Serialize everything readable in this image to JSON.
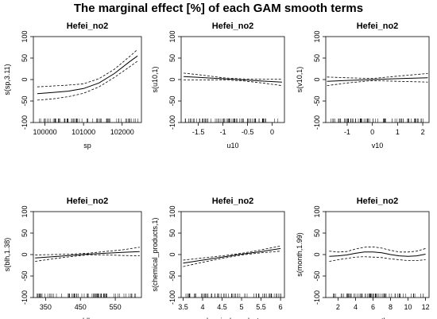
{
  "figure": {
    "title": "The marginal effect [%] of each GAM smooth terms"
  },
  "chart_data": [
    {
      "type": "line",
      "title": "Hefei_no2",
      "xlabel": "sp",
      "ylabel": "s(sp,3.11)",
      "xlim": [
        99700,
        102500
      ],
      "ylim": [
        -100,
        100
      ],
      "xticks": [
        100000,
        101000,
        102000
      ],
      "yticks": [
        -100,
        -50,
        0,
        50,
        100
      ],
      "series": [
        {
          "x": [
            99800,
            100200,
            100600,
            101000,
            101400,
            101800,
            102200,
            102400
          ],
          "values": [
            -33,
            -30,
            -27,
            -21,
            -8,
            14,
            42,
            55
          ]
        },
        {
          "x": [
            99800,
            100200,
            100600,
            101000,
            101400,
            101800,
            102200,
            102400
          ],
          "values": [
            -17,
            -15,
            -13,
            -10,
            2,
            24,
            54,
            70
          ]
        },
        {
          "x": [
            99800,
            100200,
            100600,
            101000,
            101400,
            101800,
            102200,
            102400
          ],
          "values": [
            -48,
            -45,
            -40,
            -32,
            -17,
            5,
            30,
            43
          ]
        }
      ]
    },
    {
      "type": "line",
      "title": "Hefei_no2",
      "xlabel": "u10",
      "ylabel": "s(u10,1)",
      "xlim": [
        -1.85,
        0.25
      ],
      "ylim": [
        -100,
        100
      ],
      "xticks": [
        -1.5,
        -1.0,
        -0.5,
        0.0
      ],
      "yticks": [
        -100,
        -50,
        0,
        50,
        100
      ],
      "series": [
        {
          "x": [
            -1.8,
            -1.4,
            -1.0,
            -0.6,
            -0.2,
            0.2
          ],
          "values": [
            7,
            4.5,
            1.8,
            -0.8,
            -3.5,
            -6
          ]
        },
        {
          "x": [
            -1.8,
            -1.4,
            -1.0,
            -0.6,
            -0.2,
            0.2
          ],
          "values": [
            15,
            10,
            4,
            1.5,
            1,
            1
          ]
        },
        {
          "x": [
            -1.8,
            -1.4,
            -1.0,
            -0.6,
            -0.2,
            0.2
          ],
          "values": [
            -1,
            -1,
            -0.5,
            -3,
            -8,
            -14
          ]
        }
      ]
    },
    {
      "type": "line",
      "title": "Hefei_no2",
      "xlabel": "v10",
      "ylabel": "s(v10,1)",
      "xlim": [
        -1.85,
        2.25
      ],
      "ylim": [
        -100,
        100
      ],
      "xticks": [
        -1,
        0,
        1,
        2
      ],
      "yticks": [
        -100,
        -50,
        0,
        50,
        100
      ],
      "series": [
        {
          "x": [
            -1.8,
            -1.0,
            0.0,
            1.0,
            2.2
          ],
          "values": [
            -4,
            -2,
            0,
            2,
            4
          ]
        },
        {
          "x": [
            -1.8,
            -1.0,
            0.0,
            1.0,
            2.2
          ],
          "values": [
            6,
            4,
            2.5,
            8,
            14
          ]
        },
        {
          "x": [
            -1.8,
            -1.0,
            0.0,
            1.0,
            2.2
          ],
          "values": [
            -14,
            -8,
            -2.5,
            -4,
            -6
          ]
        }
      ]
    },
    {
      "type": "line",
      "title": "Hefei_no2",
      "xlabel": "blh",
      "ylabel": "s(blh,1.38)",
      "xlim": [
        315,
        625
      ],
      "ylim": [
        -100,
        100
      ],
      "xticks": [
        350,
        450,
        550
      ],
      "yticks": [
        -100,
        -50,
        0,
        50,
        100
      ],
      "series": [
        {
          "x": [
            320,
            370,
            420,
            470,
            520,
            570,
            620
          ],
          "values": [
            -8,
            -5,
            -2,
            1,
            3,
            5,
            7
          ]
        },
        {
          "x": [
            320,
            370,
            420,
            470,
            520,
            570,
            620
          ],
          "values": [
            -1,
            0,
            1,
            3,
            7,
            11,
            17
          ]
        },
        {
          "x": [
            320,
            370,
            420,
            470,
            520,
            570,
            620
          ],
          "values": [
            -16,
            -10,
            -5,
            -1,
            -1,
            -2,
            -3
          ]
        }
      ]
    },
    {
      "type": "line",
      "title": "Hefei_no2",
      "xlabel": "chemical_products",
      "ylabel": "s(chemical_products,1)",
      "xlim": [
        3.45,
        6.1
      ],
      "ylim": [
        -100,
        100
      ],
      "xticks": [
        3.5,
        4.0,
        4.5,
        5.0,
        5.5,
        6.0
      ],
      "yticks": [
        -100,
        -50,
        0,
        50,
        100
      ],
      "series": [
        {
          "x": [
            3.5,
            4.0,
            4.5,
            5.0,
            5.5,
            6.0
          ],
          "values": [
            -20,
            -13,
            -6,
            1,
            7,
            14
          ]
        },
        {
          "x": [
            3.5,
            4.0,
            4.5,
            5.0,
            5.5,
            6.0
          ],
          "values": [
            -13,
            -8,
            -3,
            3,
            11,
            20
          ]
        },
        {
          "x": [
            3.5,
            4.0,
            4.5,
            5.0,
            5.5,
            6.0
          ],
          "values": [
            -28,
            -18,
            -9,
            -1,
            4,
            8
          ]
        }
      ]
    },
    {
      "type": "line",
      "title": "Hefei_no2",
      "xlabel": "month",
      "ylabel": "s(month,1.99)",
      "xlim": [
        0.6,
        12.4
      ],
      "ylim": [
        -100,
        100
      ],
      "xticks": [
        2,
        4,
        6,
        8,
        10,
        12
      ],
      "yticks": [
        -100,
        -50,
        0,
        50,
        100
      ],
      "series": [
        {
          "x": [
            1,
            2,
            3,
            4,
            5,
            6,
            7,
            8,
            9,
            10,
            11,
            12
          ],
          "values": [
            -4,
            -3,
            -1,
            3,
            6,
            6,
            4,
            0,
            -3,
            -4,
            -3,
            1
          ]
        },
        {
          "x": [
            1,
            2,
            3,
            4,
            5,
            6,
            7,
            8,
            9,
            10,
            11,
            12
          ],
          "values": [
            8,
            6,
            7,
            13,
            17,
            18,
            15,
            10,
            6,
            6,
            8,
            14
          ]
        },
        {
          "x": [
            1,
            2,
            3,
            4,
            5,
            6,
            7,
            8,
            9,
            10,
            11,
            12
          ],
          "values": [
            -16,
            -12,
            -9,
            -6,
            -5,
            -6,
            -7,
            -10,
            -12,
            -14,
            -14,
            -12
          ]
        }
      ]
    }
  ]
}
